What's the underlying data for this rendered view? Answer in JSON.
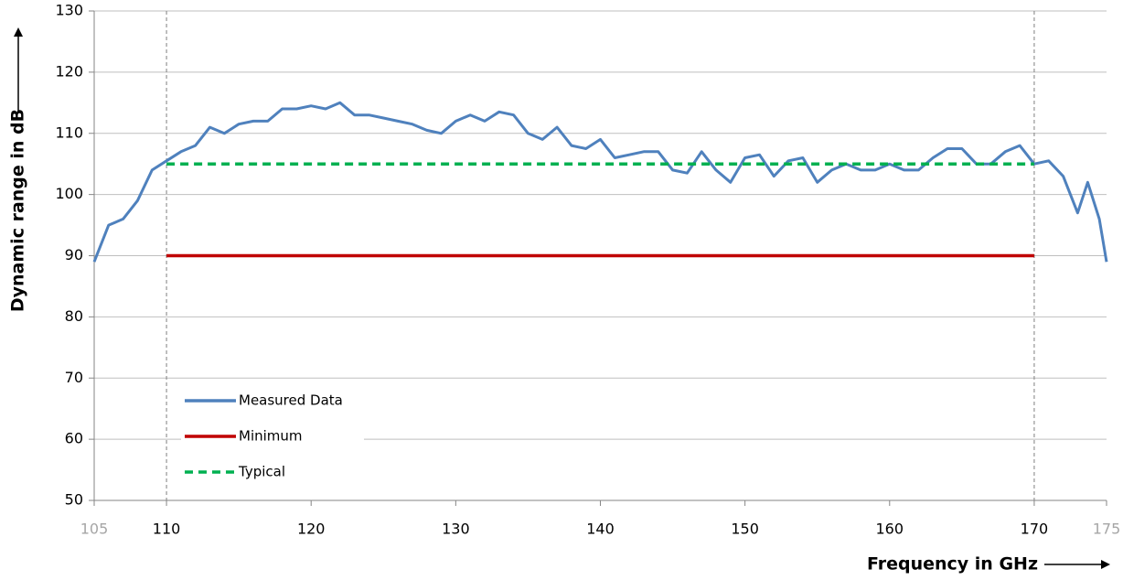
{
  "chart_data": {
    "type": "line",
    "x_label": "Frequency in GHz",
    "y_label": "Dynamic range in dB",
    "xlim": [
      105,
      175
    ],
    "ylim": [
      50,
      130
    ],
    "xticks": [
      105,
      110,
      120,
      130,
      140,
      150,
      160,
      170,
      175
    ],
    "yticks": [
      50,
      60,
      70,
      80,
      90,
      100,
      110,
      120,
      130
    ],
    "grid": true,
    "vlines": [
      110,
      170
    ],
    "legend": "lower left",
    "series": [
      {
        "name": "Measured Data",
        "color": "#4f81bd",
        "style": "solid",
        "x": [
          105,
          106,
          107,
          108,
          109,
          110,
          111,
          112,
          113,
          114,
          115,
          116,
          117,
          118,
          119,
          120,
          121,
          122,
          123,
          124,
          125,
          126,
          127,
          128,
          129,
          130,
          131,
          132,
          133,
          134,
          135,
          136,
          137,
          138,
          139,
          140,
          141,
          142,
          143,
          144,
          145,
          146,
          147,
          148,
          149,
          150,
          151,
          152,
          153,
          154,
          155,
          156,
          157,
          158,
          159,
          160,
          161,
          162,
          163,
          164,
          165,
          166,
          167,
          168,
          169,
          170,
          171,
          172,
          173,
          173.7,
          174.5,
          175
        ],
        "values": [
          89,
          95,
          96,
          99,
          104,
          105.5,
          107,
          108,
          111,
          110,
          111.5,
          112,
          112,
          114,
          114,
          114.5,
          114,
          115,
          113,
          113,
          112.5,
          112,
          111.5,
          110.5,
          110,
          112,
          113,
          112,
          113.5,
          113,
          110,
          109,
          111,
          108,
          107.5,
          109,
          106,
          106.5,
          107,
          107,
          104,
          103.5,
          107,
          104,
          102,
          106,
          106.5,
          103,
          105.5,
          106,
          102,
          104,
          105,
          104,
          104,
          105,
          104,
          104,
          106,
          107.5,
          107.5,
          105,
          105,
          107,
          108,
          105,
          105.5,
          103,
          97,
          102,
          96,
          89
        ]
      },
      {
        "name": "Minimum",
        "color": "#c00000",
        "style": "solid",
        "x": [
          110,
          170
        ],
        "values": [
          90,
          90
        ]
      },
      {
        "name": "Typical",
        "color": "#00b050",
        "style": "dashed",
        "x": [
          110,
          170
        ],
        "values": [
          105,
          105
        ]
      }
    ]
  }
}
